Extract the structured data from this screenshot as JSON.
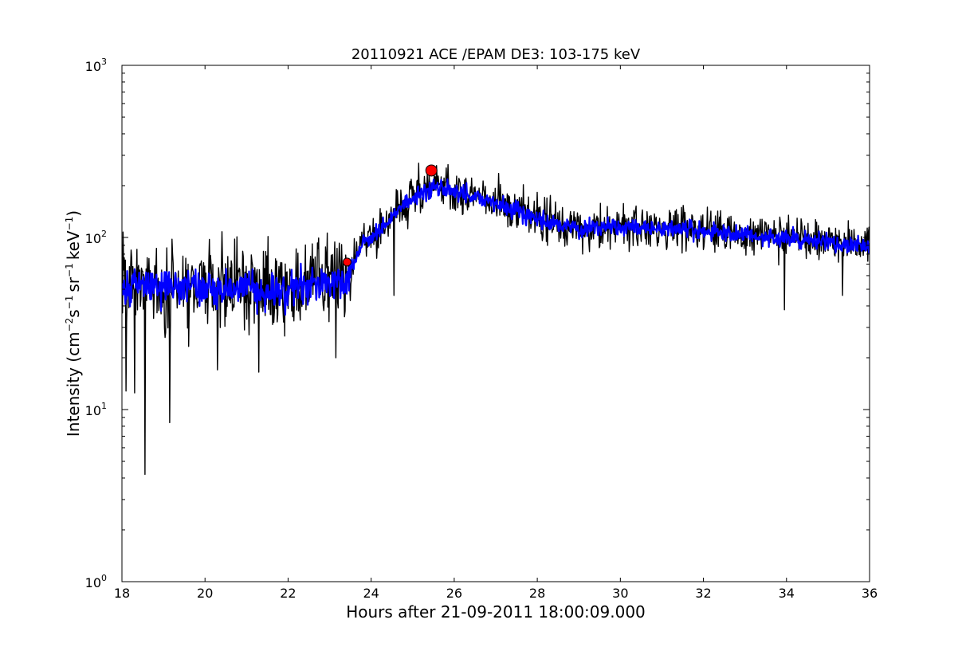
{
  "chart_data": {
    "type": "line",
    "title": "20110921 ACE /EPAM DE3: 103-175 keV",
    "xlabel": "Hours after 21-09-2011 18:00:09.000",
    "ylabel": {
      "prefix": "Intensity (cm",
      "sup1": "−2",
      "mid1": "s",
      "sup2": "−1",
      "mid2": "sr",
      "sup3": "−1",
      "mid3": "keV",
      "sup4": "−1",
      "suffix": ")"
    },
    "xlim": [
      18,
      36
    ],
    "ylim": [
      1,
      1000
    ],
    "yscale": "log",
    "x_ticks": [
      "18",
      "20",
      "22",
      "24",
      "26",
      "28",
      "30",
      "32",
      "34",
      "36"
    ],
    "y_ticks": [
      {
        "base": "10",
        "exp": "0"
      },
      {
        "base": "10",
        "exp": "1"
      },
      {
        "base": "10",
        "exp": "2"
      },
      {
        "base": "10",
        "exp": "3"
      }
    ],
    "grid": false,
    "series": [
      {
        "color": "#000000",
        "profile": [
          [
            18.0,
            50
          ],
          [
            18.5,
            55
          ],
          [
            19.0,
            52
          ],
          [
            19.5,
            55
          ],
          [
            20.0,
            50
          ],
          [
            20.5,
            52
          ],
          [
            21.0,
            50
          ],
          [
            21.5,
            48
          ],
          [
            22.0,
            50
          ],
          [
            22.5,
            55
          ],
          [
            23.0,
            55
          ],
          [
            23.4,
            58
          ],
          [
            23.6,
            75
          ],
          [
            23.8,
            95
          ],
          [
            24.0,
            100
          ],
          [
            24.5,
            130
          ],
          [
            25.0,
            175
          ],
          [
            25.5,
            200
          ],
          [
            26.0,
            190
          ],
          [
            26.5,
            175
          ],
          [
            27.0,
            165
          ],
          [
            27.5,
            145
          ],
          [
            28.0,
            130
          ],
          [
            28.5,
            120
          ],
          [
            29.0,
            115
          ],
          [
            30.0,
            115
          ],
          [
            31.0,
            115
          ],
          [
            32.0,
            110
          ],
          [
            33.0,
            105
          ],
          [
            34.0,
            100
          ],
          [
            35.0,
            95
          ],
          [
            36.0,
            90
          ]
        ],
        "spikes": [
          [
            18.55,
            4.2
          ],
          [
            19.15,
            8.4
          ],
          [
            18.3,
            12.5
          ],
          [
            18.1,
            12.8
          ],
          [
            23.15,
            20
          ],
          [
            20.3,
            17
          ],
          [
            21.3,
            16.5
          ],
          [
            24.55,
            46
          ],
          [
            25.15,
            270
          ],
          [
            25.85,
            265
          ],
          [
            33.95,
            38
          ],
          [
            35.35,
            46
          ]
        ]
      },
      {
        "color": "#0000ff",
        "profile": [
          [
            18.0,
            50
          ],
          [
            18.5,
            52
          ],
          [
            19.0,
            50
          ],
          [
            19.5,
            53
          ],
          [
            20.0,
            50
          ],
          [
            20.5,
            50
          ],
          [
            21.0,
            50
          ],
          [
            21.5,
            48
          ],
          [
            22.0,
            50
          ],
          [
            22.5,
            53
          ],
          [
            23.0,
            53
          ],
          [
            23.4,
            56
          ],
          [
            23.6,
            72
          ],
          [
            23.8,
            92
          ],
          [
            24.0,
            98
          ],
          [
            24.5,
            128
          ],
          [
            25.0,
            170
          ],
          [
            25.5,
            195
          ],
          [
            26.0,
            185
          ],
          [
            26.5,
            170
          ],
          [
            27.0,
            160
          ],
          [
            27.5,
            142
          ],
          [
            28.0,
            128
          ],
          [
            28.5,
            118
          ],
          [
            29.0,
            113
          ],
          [
            30.0,
            113
          ],
          [
            31.0,
            113
          ],
          [
            32.0,
            108
          ],
          [
            33.0,
            103
          ],
          [
            34.0,
            98
          ],
          [
            35.0,
            93
          ],
          [
            36.0,
            88
          ]
        ]
      }
    ],
    "markers": [
      {
        "x": 25.45,
        "y": 245,
        "color": "#ff0000",
        "size": "large"
      },
      {
        "x": 23.42,
        "y": 72,
        "color": "#ff0000",
        "size": "small"
      }
    ]
  }
}
